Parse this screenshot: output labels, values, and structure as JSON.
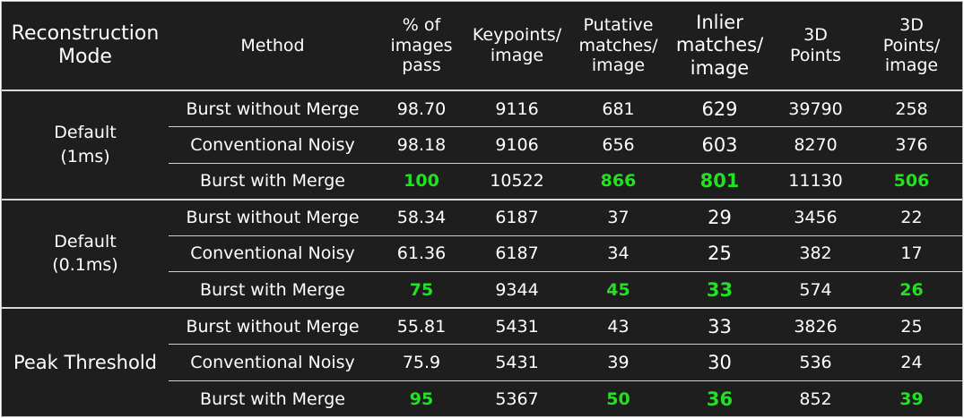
{
  "header": {
    "mode": [
      "Reconstruction",
      "Mode"
    ],
    "method": "Method",
    "pass": [
      "% of",
      "images",
      "pass"
    ],
    "keypoints": [
      "Keypoints/",
      "image"
    ],
    "putative": [
      "Putative",
      "matches/",
      "image"
    ],
    "inlier": [
      "Inlier",
      "matches/",
      "image"
    ],
    "points3d": [
      "3D",
      "Points"
    ],
    "points_per_image": [
      "3D",
      "Points/",
      "image"
    ]
  },
  "groups": [
    {
      "mode": [
        "Default",
        "(1ms)"
      ],
      "rows": [
        {
          "method": "Burst without Merge",
          "pass": "98.70",
          "keypoints": "9116",
          "putative": "681",
          "inlier": "629",
          "points3d": "39790",
          "ppi": "258"
        },
        {
          "method": "Conventional Noisy",
          "pass": "98.18",
          "keypoints": "9106",
          "putative": "656",
          "inlier": "603",
          "points3d": "8270",
          "ppi": "376"
        },
        {
          "method": "Burst with Merge",
          "pass": "100",
          "keypoints": "10522",
          "putative": "866",
          "inlier": "801",
          "points3d": "11130",
          "ppi": "506"
        }
      ]
    },
    {
      "mode": [
        "Default",
        "(0.1ms)"
      ],
      "rows": [
        {
          "method": "Burst without Merge",
          "pass": "58.34",
          "keypoints": "6187",
          "putative": "37",
          "inlier": "29",
          "points3d": "3456",
          "ppi": "22"
        },
        {
          "method": "Conventional Noisy",
          "pass": "61.36",
          "keypoints": "6187",
          "putative": "34",
          "inlier": "25",
          "points3d": "382",
          "ppi": "17"
        },
        {
          "method": "Burst with Merge",
          "pass": "75",
          "keypoints": "9344",
          "putative": "45",
          "inlier": "33",
          "points3d": "574",
          "ppi": "26"
        }
      ]
    },
    {
      "mode": [
        "Peak Threshold"
      ],
      "rows": [
        {
          "method": "Burst without Merge",
          "pass": "55.81",
          "keypoints": "5431",
          "putative": "43",
          "inlier": "33",
          "points3d": "3826",
          "ppi": "25"
        },
        {
          "method": "Conventional Noisy",
          "pass": "75.9",
          "keypoints": "5431",
          "putative": "39",
          "inlier": "30",
          "points3d": "536",
          "ppi": "24"
        },
        {
          "method": "Burst with Merge",
          "pass": "95",
          "keypoints": "5367",
          "putative": "50",
          "inlier": "36",
          "points3d": "852",
          "ppi": "39"
        }
      ]
    }
  ],
  "colors": {
    "background": "#1e1e1e",
    "text": "#ffffff",
    "highlight": "#22e022",
    "rule": "#d8d8d8"
  }
}
